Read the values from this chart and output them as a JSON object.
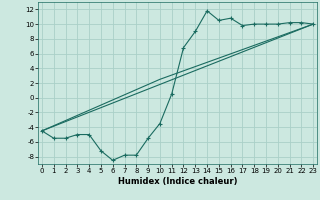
{
  "title": "",
  "xlabel": "Humidex (Indice chaleur)",
  "ylabel": "",
  "bg_color": "#cce8e0",
  "grid_color": "#aad0c8",
  "line_color": "#1a6b60",
  "line1_x": [
    0,
    1,
    2,
    3,
    4,
    5,
    6,
    7,
    8,
    9,
    10,
    11,
    12,
    13,
    14,
    15,
    16,
    17,
    18,
    19,
    20,
    21,
    22,
    23
  ],
  "line1_y": [
    -4.5,
    -5.5,
    -5.5,
    -5.0,
    -5.0,
    -7.2,
    -8.5,
    -7.8,
    -7.8,
    -5.5,
    -3.5,
    0.5,
    6.8,
    9.0,
    11.8,
    10.5,
    10.8,
    9.8,
    10.0,
    10.0,
    10.0,
    10.2,
    10.2,
    10.0
  ],
  "line2_x": [
    0,
    23
  ],
  "line2_y": [
    -4.5,
    10.0
  ],
  "line3_x": [
    0,
    10,
    23
  ],
  "line3_y": [
    -4.5,
    2.5,
    10.0
  ],
  "xlim": [
    -0.3,
    23.3
  ],
  "ylim": [
    -9,
    13
  ],
  "yticks": [
    -8,
    -6,
    -4,
    -2,
    0,
    2,
    4,
    6,
    8,
    10,
    12
  ],
  "xticks": [
    0,
    1,
    2,
    3,
    4,
    5,
    6,
    7,
    8,
    9,
    10,
    11,
    12,
    13,
    14,
    15,
    16,
    17,
    18,
    19,
    20,
    21,
    22,
    23
  ],
  "xlabel_fontsize": 6.0,
  "tick_fontsize": 5.0
}
